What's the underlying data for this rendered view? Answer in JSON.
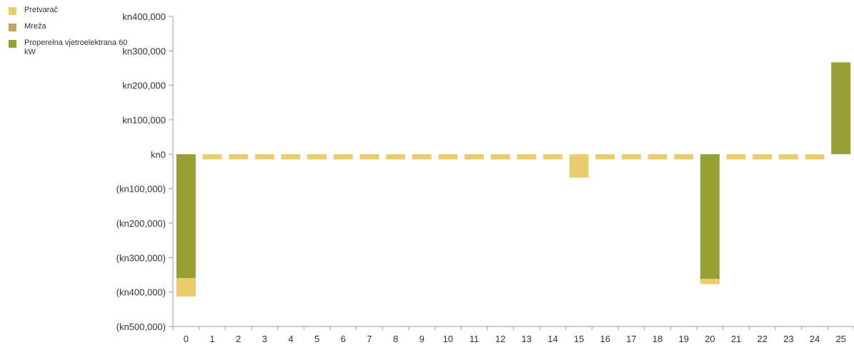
{
  "chart_data": {
    "type": "bar",
    "stacked": true,
    "categories": [
      "0",
      "1",
      "2",
      "3",
      "4",
      "5",
      "6",
      "7",
      "8",
      "9",
      "10",
      "11",
      "12",
      "13",
      "14",
      "15",
      "16",
      "17",
      "18",
      "19",
      "20",
      "21",
      "22",
      "23",
      "24",
      "25"
    ],
    "series": [
      {
        "name": "Pretvarač",
        "color": "#e8cc6e",
        "values": [
          -53000,
          -15000,
          -15000,
          -15000,
          -15000,
          -15000,
          -15000,
          -15000,
          -15000,
          -15000,
          -15000,
          -15000,
          -15000,
          -15000,
          -15000,
          -68000,
          -15000,
          -15000,
          -15000,
          -15000,
          -15000,
          -15000,
          -15000,
          -15000,
          -15000,
          2000
        ]
      },
      {
        "name": "Mreža",
        "color": "#c4a45e",
        "values": [
          0,
          0,
          0,
          0,
          0,
          0,
          0,
          0,
          0,
          0,
          0,
          0,
          0,
          0,
          0,
          0,
          0,
          0,
          0,
          0,
          0,
          0,
          0,
          0,
          0,
          0
        ]
      },
      {
        "name": "Properelna vjetroelektrana 60 kW",
        "color": "#97a133",
        "values": [
          -360000,
          0,
          0,
          0,
          0,
          0,
          0,
          0,
          0,
          0,
          0,
          0,
          0,
          0,
          0,
          0,
          0,
          0,
          0,
          0,
          -362000,
          0,
          0,
          0,
          0,
          266000
        ]
      }
    ],
    "y_ticks": [
      "kn400,000",
      "kn300,000",
      "kn200,000",
      "kn100,000",
      "kn0",
      "(kn100,000)",
      "(kn200,000)",
      "(kn300,000)",
      "(kn400,000)",
      "(kn500,000)"
    ],
    "ylim": [
      -500000,
      400000
    ],
    "legend_position": "top-left",
    "grid": false
  }
}
